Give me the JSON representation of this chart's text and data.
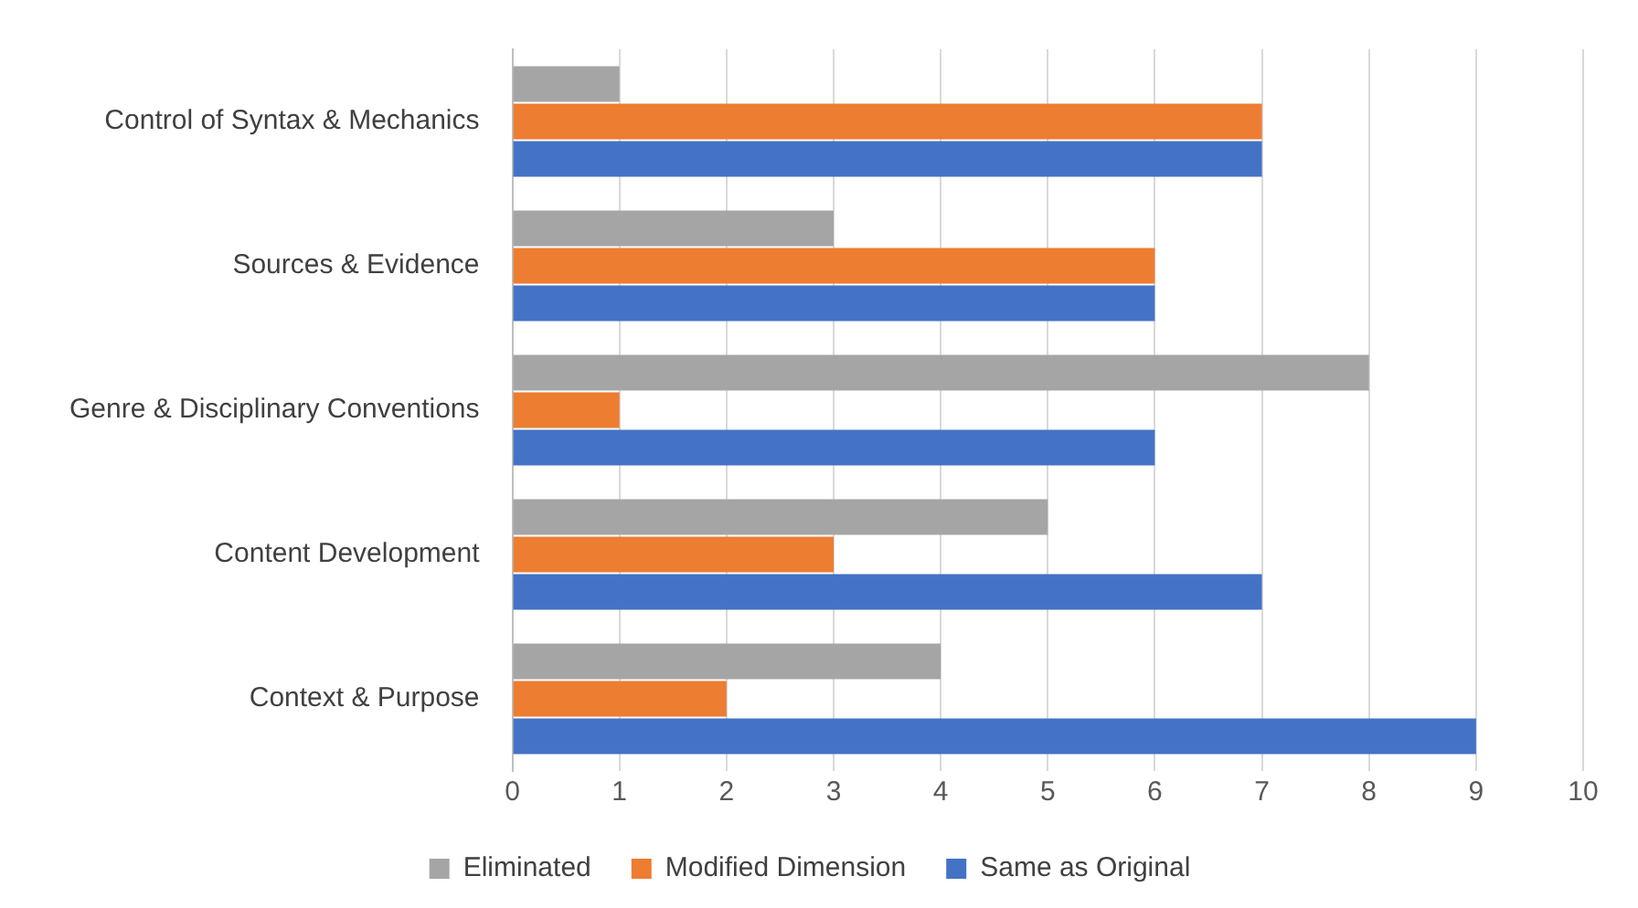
{
  "chart_data": {
    "type": "bar",
    "orientation": "horizontal",
    "categories": [
      "Control of Syntax & Mechanics",
      "Sources & Evidence",
      "Genre & Disciplinary Conventions",
      "Content Development",
      "Context & Purpose"
    ],
    "series": [
      {
        "name": "Eliminated",
        "color": "#a5a5a5",
        "values": [
          1,
          3,
          8,
          5,
          4
        ]
      },
      {
        "name": "Modified Dimension",
        "color": "#ed7d31",
        "values": [
          7,
          6,
          1,
          3,
          2
        ]
      },
      {
        "name": "Same as Original",
        "color": "#4472c4",
        "values": [
          7,
          6,
          6,
          7,
          9
        ]
      }
    ],
    "xlim": [
      0,
      10
    ],
    "xticks": [
      0,
      1,
      2,
      3,
      4,
      5,
      6,
      7,
      8,
      9,
      10
    ],
    "grid": "x",
    "legend": "bottom"
  }
}
